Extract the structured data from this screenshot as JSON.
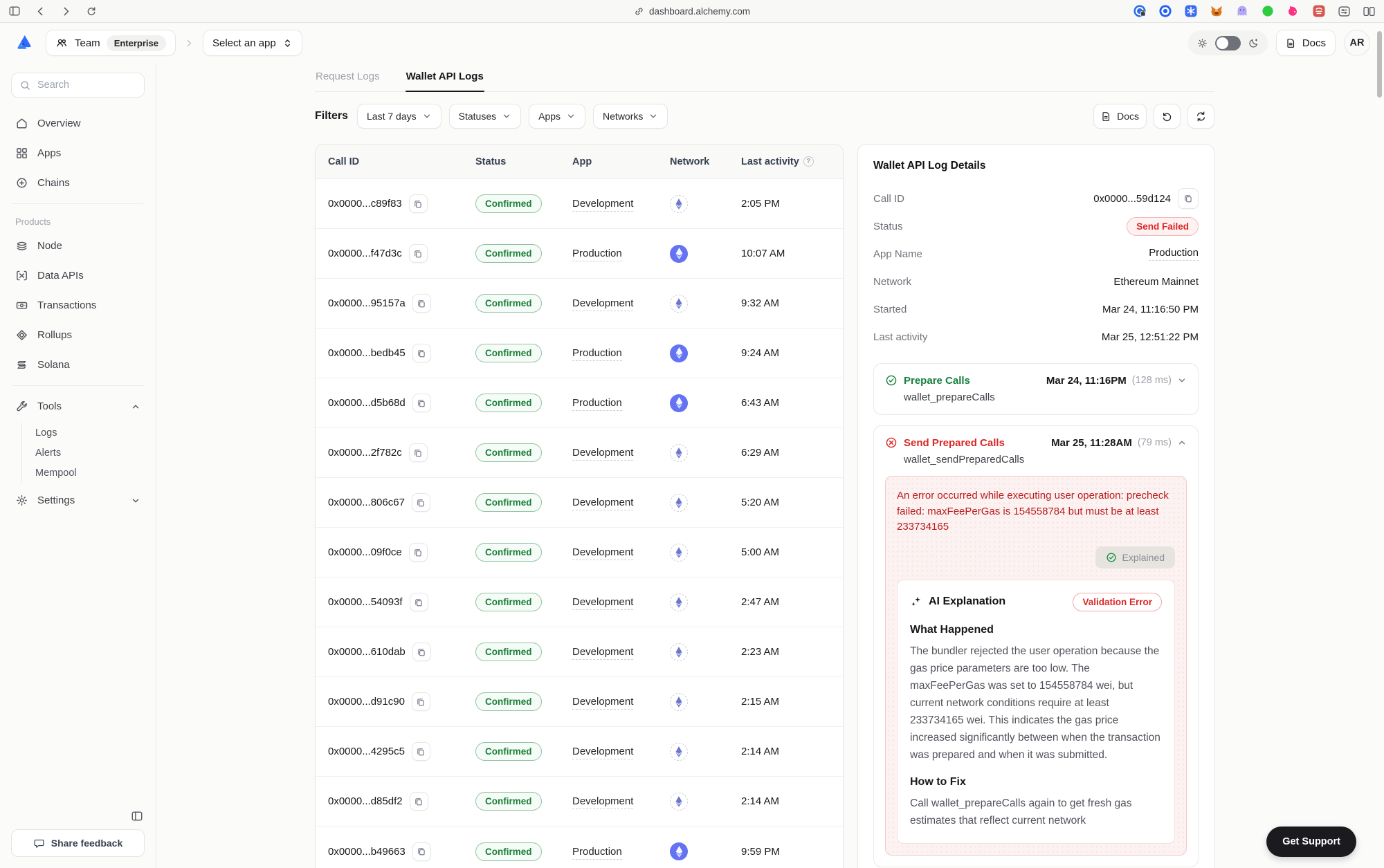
{
  "browser": {
    "url": "dashboard.alchemy.com"
  },
  "header": {
    "team_label": "Team",
    "team_badge": "Enterprise",
    "app_select_label": "Select an app",
    "docs_label": "Docs",
    "avatar_initials": "AR"
  },
  "sidebar": {
    "search_placeholder": "Search",
    "nav_items": [
      {
        "label": "Overview",
        "icon": "home-icon"
      },
      {
        "label": "Apps",
        "icon": "grid-icon"
      },
      {
        "label": "Chains",
        "icon": "chains-icon"
      }
    ],
    "products_heading": "Products",
    "product_items": [
      {
        "label": "Node",
        "icon": "node-icon"
      },
      {
        "label": "Data APIs",
        "icon": "data-apis-icon"
      },
      {
        "label": "Transactions",
        "icon": "transactions-icon"
      },
      {
        "label": "Rollups",
        "icon": "rollups-icon"
      },
      {
        "label": "Solana",
        "icon": "solana-icon"
      }
    ],
    "tools_label": "Tools",
    "tools_children": [
      "Logs",
      "Alerts",
      "Mempool"
    ],
    "settings_label": "Settings",
    "share_feedback_label": "Share feedback"
  },
  "tabs": [
    {
      "label": "Request Logs",
      "active": false
    },
    {
      "label": "Wallet API Logs",
      "active": true
    }
  ],
  "filters": {
    "heading": "Filters",
    "dropdowns": [
      "Last 7 days",
      "Statuses",
      "Apps",
      "Networks"
    ],
    "docs_button_label": "Docs"
  },
  "logs_table": {
    "columns": [
      "Call ID",
      "Status",
      "App",
      "Network",
      "Last activity"
    ],
    "rows": [
      {
        "call_id": "0x0000...c89f83",
        "status": "Confirmed",
        "app": "Development",
        "network": "Ethereum",
        "last_activity": "2:05 PM"
      },
      {
        "call_id": "0x0000...f47d3c",
        "status": "Confirmed",
        "app": "Production",
        "network": "Ethereum",
        "last_activity": "10:07 AM"
      },
      {
        "call_id": "0x0000...95157a",
        "status": "Confirmed",
        "app": "Development",
        "network": "Ethereum",
        "last_activity": "9:32 AM"
      },
      {
        "call_id": "0x0000...bedb45",
        "status": "Confirmed",
        "app": "Production",
        "network": "Ethereum",
        "last_activity": "9:24 AM"
      },
      {
        "call_id": "0x0000...d5b68d",
        "status": "Confirmed",
        "app": "Production",
        "network": "Ethereum",
        "last_activity": "6:43 AM"
      },
      {
        "call_id": "0x0000...2f782c",
        "status": "Confirmed",
        "app": "Development",
        "network": "Ethereum",
        "last_activity": "6:29 AM"
      },
      {
        "call_id": "0x0000...806c67",
        "status": "Confirmed",
        "app": "Development",
        "network": "Ethereum",
        "last_activity": "5:20 AM"
      },
      {
        "call_id": "0x0000...09f0ce",
        "status": "Confirmed",
        "app": "Development",
        "network": "Ethereum",
        "last_activity": "5:00 AM"
      },
      {
        "call_id": "0x0000...54093f",
        "status": "Confirmed",
        "app": "Development",
        "network": "Ethereum",
        "last_activity": "2:47 AM"
      },
      {
        "call_id": "0x0000...610dab",
        "status": "Confirmed",
        "app": "Development",
        "network": "Ethereum",
        "last_activity": "2:23 AM"
      },
      {
        "call_id": "0x0000...d91c90",
        "status": "Confirmed",
        "app": "Development",
        "network": "Ethereum",
        "last_activity": "2:15 AM"
      },
      {
        "call_id": "0x0000...4295c5",
        "status": "Confirmed",
        "app": "Development",
        "network": "Ethereum",
        "last_activity": "2:14 AM"
      },
      {
        "call_id": "0x0000...d85df2",
        "status": "Confirmed",
        "app": "Development",
        "network": "Ethereum",
        "last_activity": "2:14 AM"
      },
      {
        "call_id": "0x0000...b49663",
        "status": "Confirmed",
        "app": "Production",
        "network": "Ethereum",
        "last_activity": "9:59 PM"
      }
    ]
  },
  "details": {
    "title": "Wallet API Log Details",
    "call_id_label": "Call ID",
    "call_id_value": "0x0000...59d124",
    "status_label": "Status",
    "status_value": "Send Failed",
    "app_name_label": "App Name",
    "app_name_value": "Production",
    "network_label": "Network",
    "network_value": "Ethereum Mainnet",
    "started_label": "Started",
    "started_value": "Mar 24, 11:16:50 PM",
    "last_activity_label": "Last activity",
    "last_activity_value": "Mar 25, 12:51:22 PM",
    "steps": [
      {
        "title": "Prepare Calls",
        "state": "success",
        "timestamp": "Mar 24, 11:16PM",
        "duration": "(128 ms)",
        "method": "wallet_prepareCalls"
      },
      {
        "title": "Send Prepared Calls",
        "state": "error",
        "timestamp": "Mar 25, 11:28AM",
        "duration": "(79 ms)",
        "method": "wallet_sendPreparedCalls"
      }
    ],
    "error_message": "An error occurred while executing user operation: precheck failed: maxFeePerGas is 154558784 but must be at least 233734165",
    "explained_label": "Explained",
    "ai": {
      "title": "AI Explanation",
      "badge": "Validation Error",
      "sections": [
        {
          "heading": "What Happened",
          "text": "The bundler rejected the user operation because the gas price parameters are too low. The maxFeePerGas was set to 154558784 wei, but current network conditions require at least 233734165 wei. This indicates the gas price increased significantly between when the transaction was prepared and when it was submitted."
        },
        {
          "heading": "How to Fix",
          "text": "Call wallet_prepareCalls again to get fresh gas estimates that reflect current network"
        }
      ]
    }
  },
  "get_support_label": "Get Support",
  "colors": {
    "accent_blue": "#3b6ef5",
    "success_green": "#1a7f37",
    "error_red": "#dc2626",
    "production_network_blue": "#6373f2"
  }
}
